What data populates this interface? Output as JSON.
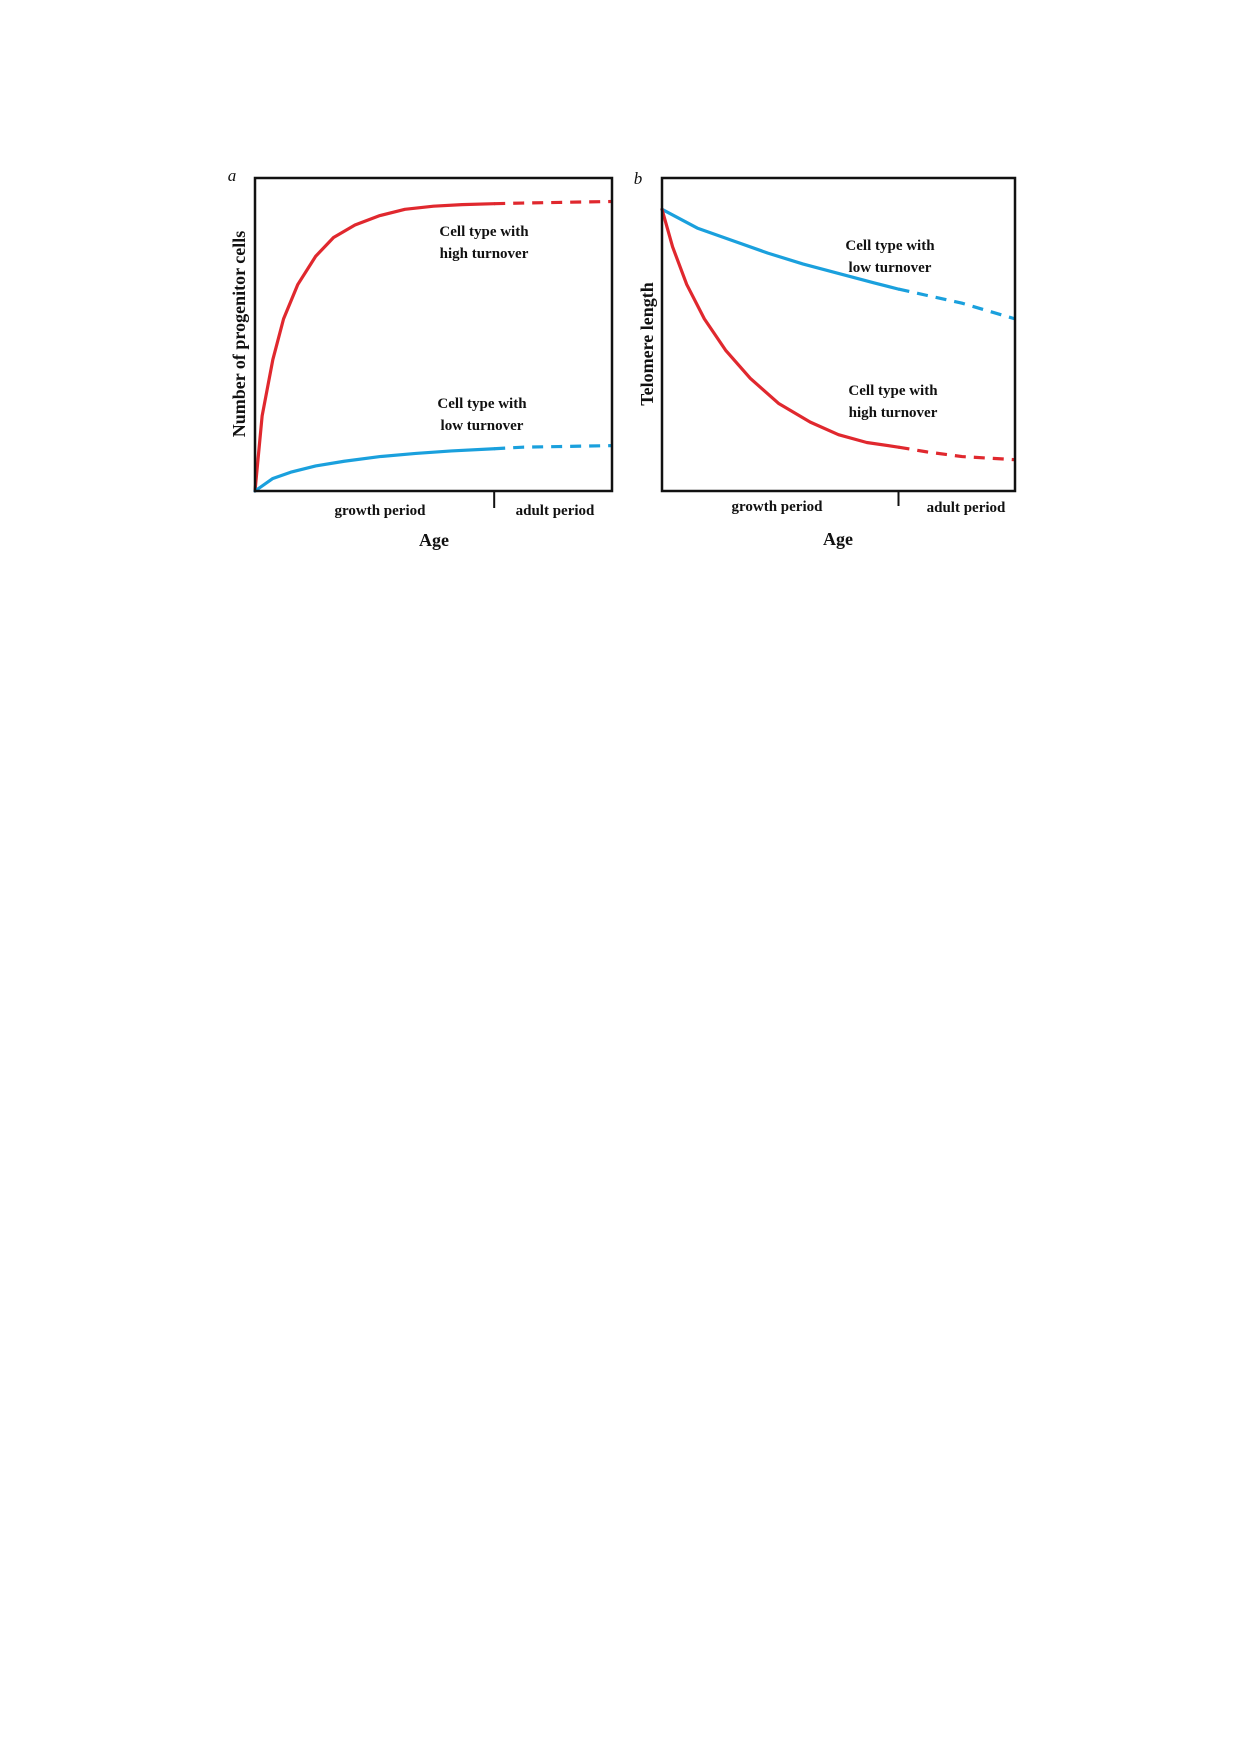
{
  "chart_data": [
    {
      "type": "line",
      "panel": "a",
      "xlabel": "Age",
      "ylabel": "Number of progenitor cells",
      "xlim": [
        0,
        1
      ],
      "ylim": [
        0,
        1
      ],
      "period_labels": [
        "growth period",
        "adult period"
      ],
      "period_boundary": 0.67,
      "series": [
        {
          "label_lines": [
            "Cell type with",
            "high turnover"
          ],
          "color": "#e0282e",
          "x": [
            0,
            0.02,
            0.05,
            0.08,
            0.12,
            0.17,
            0.22,
            0.28,
            0.35,
            0.42,
            0.5,
            0.58,
            0.67,
            0.75,
            0.85,
            1.0
          ],
          "y": [
            0,
            0.24,
            0.42,
            0.55,
            0.66,
            0.75,
            0.81,
            0.85,
            0.88,
            0.9,
            0.91,
            0.915,
            0.918,
            0.92,
            0.922,
            0.925
          ]
        },
        {
          "label_lines": [
            "Cell type with",
            "low turnover"
          ],
          "color": "#1aa0dd",
          "x": [
            0,
            0.05,
            0.1,
            0.17,
            0.25,
            0.35,
            0.45,
            0.55,
            0.67,
            0.75,
            0.85,
            1.0
          ],
          "y": [
            0,
            0.04,
            0.06,
            0.08,
            0.095,
            0.11,
            0.12,
            0.128,
            0.135,
            0.14,
            0.142,
            0.145
          ]
        }
      ]
    },
    {
      "type": "line",
      "panel": "b",
      "xlabel": "Age",
      "ylabel": "Telomere length",
      "xlim": [
        0,
        1
      ],
      "ylim": [
        0,
        1
      ],
      "period_labels": [
        "growth period",
        "adult period"
      ],
      "period_boundary": 0.67,
      "series": [
        {
          "label_lines": [
            "Cell type with",
            "low turnover"
          ],
          "color": "#1aa0dd",
          "x": [
            0,
            0.05,
            0.1,
            0.2,
            0.3,
            0.4,
            0.5,
            0.6,
            0.67,
            0.75,
            0.85,
            1.0
          ],
          "y": [
            0.9,
            0.87,
            0.84,
            0.8,
            0.76,
            0.725,
            0.695,
            0.665,
            0.645,
            0.625,
            0.6,
            0.55
          ]
        },
        {
          "label_lines": [
            "Cell type with",
            "high turnover"
          ],
          "color": "#e0282e",
          "x": [
            0,
            0.03,
            0.07,
            0.12,
            0.18,
            0.25,
            0.33,
            0.42,
            0.5,
            0.58,
            0.67,
            0.75,
            0.85,
            1.0
          ],
          "y": [
            0.9,
            0.78,
            0.66,
            0.55,
            0.45,
            0.36,
            0.28,
            0.22,
            0.18,
            0.155,
            0.14,
            0.125,
            0.11,
            0.1
          ]
        }
      ]
    }
  ]
}
